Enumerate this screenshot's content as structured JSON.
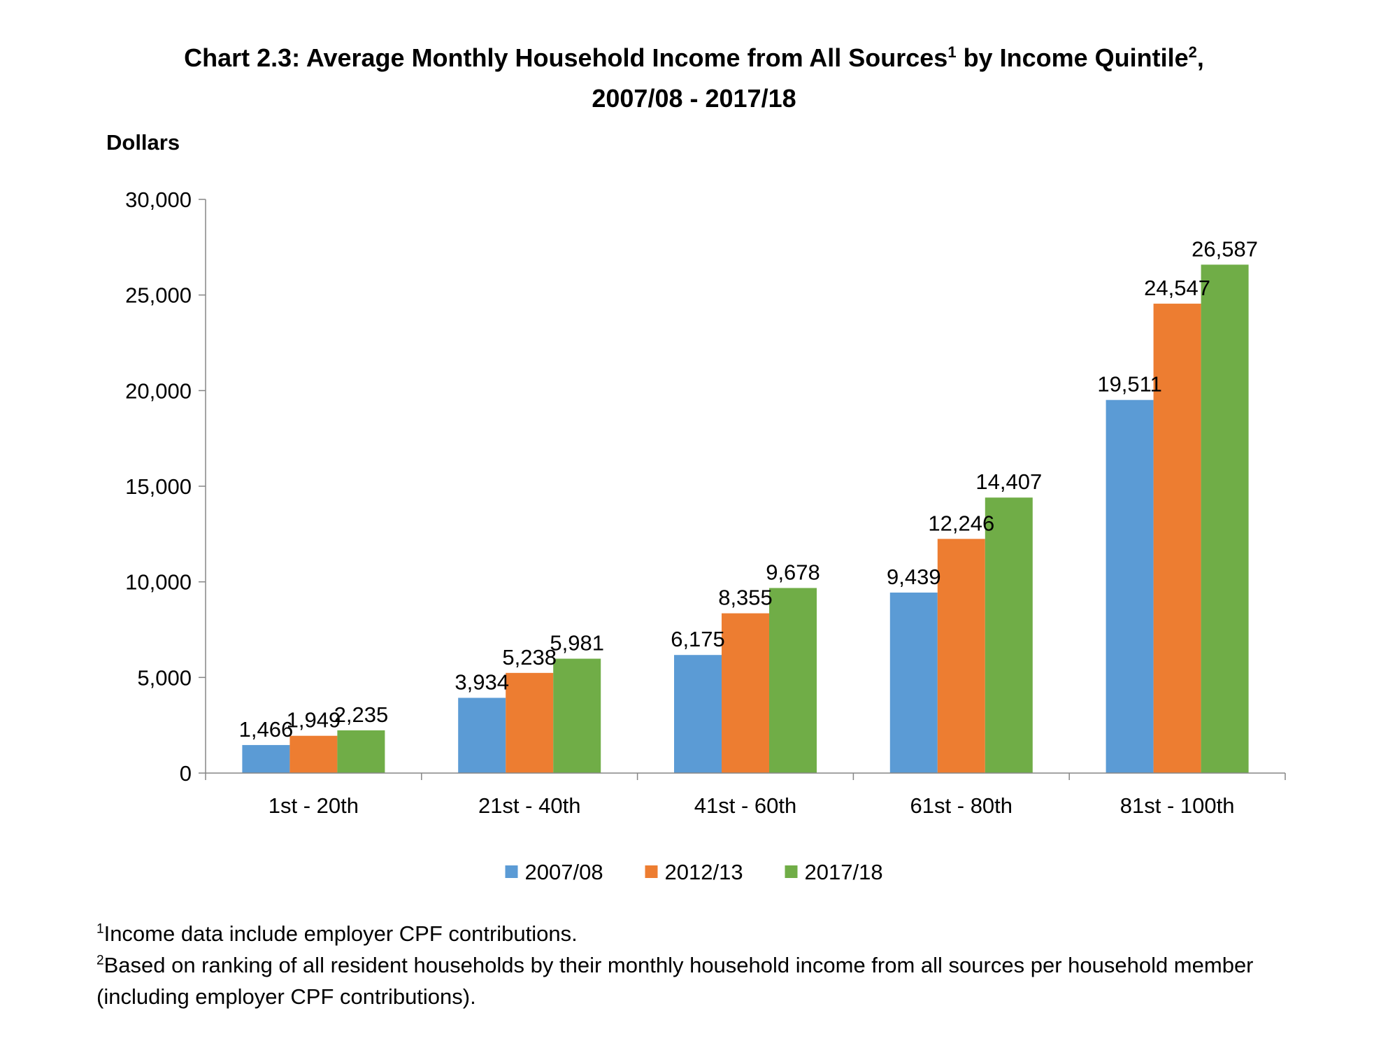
{
  "chart_data": {
    "type": "bar",
    "title_line1": "Chart 2.3: Average Monthly Household Income from All Sources",
    "title_sup1": "1",
    "title_mid": " by Income Quintile",
    "title_sup2": "2",
    "title_end": ",",
    "title_line2": "2007/08 - 2017/18",
    "ylabel": "Dollars",
    "xlabel": "",
    "ylim": [
      0,
      30000
    ],
    "yticks": [
      0,
      5000,
      10000,
      15000,
      20000,
      25000,
      30000
    ],
    "ytick_labels": [
      "0",
      "5,000",
      "10,000",
      "15,000",
      "20,000",
      "25,000",
      "30,000"
    ],
    "categories": [
      "1st - 20th",
      "21st - 40th",
      "41st - 60th",
      "61st - 80th",
      "81st - 100th"
    ],
    "series": [
      {
        "name": "2007/08",
        "color": "#5B9BD5",
        "values": [
          1466,
          3934,
          6175,
          9439,
          19511
        ],
        "labels": [
          "1,466",
          "3,934",
          "6,175",
          "9,439",
          "19,511"
        ]
      },
      {
        "name": "2012/13",
        "color": "#ED7D31",
        "values": [
          1949,
          5238,
          8355,
          12246,
          24547
        ],
        "labels": [
          "1,949",
          "5,238",
          "8,355",
          "12,246",
          "24,547"
        ]
      },
      {
        "name": "2017/18",
        "color": "#70AD47",
        "values": [
          2235,
          5981,
          9678,
          14407,
          26587
        ],
        "labels": [
          "2,235",
          "5,981",
          "9,678",
          "14,407",
          "26,587"
        ]
      }
    ],
    "grid": false,
    "legend_position": "bottom"
  },
  "notes": {
    "note1_sup": "1",
    "note1_text": "Income data include employer CPF contributions.",
    "note2_sup": "2",
    "note2_text": "Based on ranking of all resident households by their monthly household income from all sources per household member (including employer CPF contributions)."
  }
}
